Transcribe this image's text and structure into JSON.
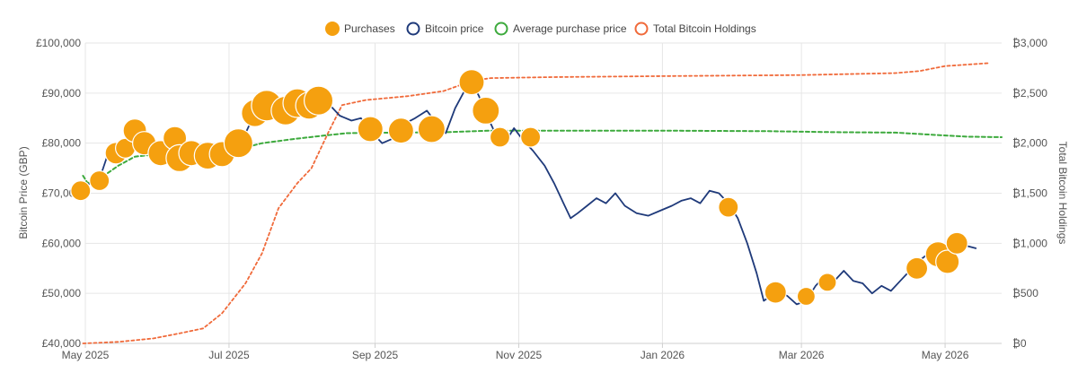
{
  "chart_data": {
    "type": "line",
    "title": "",
    "legend": {
      "placement": "top-center",
      "entries": [
        {
          "name": "Purchases",
          "marker": "filled-circle",
          "color": "#F5A00F"
        },
        {
          "name": "Bitcoin price",
          "marker": "hollow-circle",
          "color": "#1F3A7A"
        },
        {
          "name": "Average purchase price",
          "marker": "hollow-circle",
          "color": "#3DAA3D"
        },
        {
          "name": "Total Bitcoin Holdings",
          "marker": "hollow-circle",
          "color": "#F06A3A"
        }
      ]
    },
    "x_axis": {
      "start": "2025-05-01",
      "end": "2026-05-25",
      "ticks": [
        {
          "date": "2025-05-01",
          "label": "May 2025"
        },
        {
          "date": "2025-07-01",
          "label": "Jul 2025"
        },
        {
          "date": "2025-09-01",
          "label": "Sep 2025"
        },
        {
          "date": "2025-11-01",
          "label": "Nov 2025"
        },
        {
          "date": "2026-01-01",
          "label": "Jan 2026"
        },
        {
          "date": "2026-03-01",
          "label": "Mar 2026"
        },
        {
          "date": "2026-05-01",
          "label": "May 2026"
        }
      ]
    },
    "y_left": {
      "label": "Bitcoin Price (GBP)",
      "min": 40000,
      "max": 100000,
      "ticks": [
        {
          "value": 40000,
          "label": "£40,000"
        },
        {
          "value": 50000,
          "label": "£50,000"
        },
        {
          "value": 60000,
          "label": "£60,000"
        },
        {
          "value": 70000,
          "label": "£70,000"
        },
        {
          "value": 80000,
          "label": "£80,000"
        },
        {
          "value": 90000,
          "label": "£90,000"
        },
        {
          "value": 100000,
          "label": "£100,000"
        }
      ]
    },
    "y_right": {
      "label": "Total Bitcoin Holdings",
      "min": 0,
      "max": 3000,
      "ticks": [
        {
          "value": 0,
          "label": "₿0"
        },
        {
          "value": 500,
          "label": "₿500"
        },
        {
          "value": 1000,
          "label": "₿1,000"
        },
        {
          "value": 1500,
          "label": "₿1,500"
        },
        {
          "value": 2000,
          "label": "₿2,000"
        },
        {
          "value": 2500,
          "label": "₿2,500"
        },
        {
          "value": 3000,
          "label": "₿3,000"
        }
      ]
    },
    "grid": true,
    "series": [
      {
        "name": "Bitcoin price",
        "axis": "left",
        "color": "#1F3A7A",
        "style": "solid",
        "points": [
          [
            "2025-04-29",
            70500
          ],
          [
            "2025-05-03",
            72000
          ],
          [
            "2025-05-07",
            72800
          ],
          [
            "2025-05-10",
            77000
          ],
          [
            "2025-05-14",
            78500
          ],
          [
            "2025-05-18",
            80500
          ],
          [
            "2025-05-22",
            82000
          ],
          [
            "2025-05-26",
            80000
          ],
          [
            "2025-05-30",
            78000
          ],
          [
            "2025-06-04",
            79500
          ],
          [
            "2025-06-08",
            77500
          ],
          [
            "2025-06-13",
            80000
          ],
          [
            "2025-06-18",
            78500
          ],
          [
            "2025-06-23",
            76500
          ],
          [
            "2025-06-28",
            78000
          ],
          [
            "2025-07-03",
            79500
          ],
          [
            "2025-07-07",
            81000
          ],
          [
            "2025-07-11",
            85000
          ],
          [
            "2025-07-15",
            86500
          ],
          [
            "2025-07-19",
            87500
          ],
          [
            "2025-07-23",
            86000
          ],
          [
            "2025-07-28",
            87500
          ],
          [
            "2025-08-02",
            86000
          ],
          [
            "2025-08-07",
            85500
          ],
          [
            "2025-08-12",
            88000
          ],
          [
            "2025-08-17",
            85500
          ],
          [
            "2025-08-22",
            84500
          ],
          [
            "2025-08-26",
            85000
          ],
          [
            "2025-08-31",
            82000
          ],
          [
            "2025-09-04",
            80000
          ],
          [
            "2025-09-09",
            81000
          ],
          [
            "2025-09-14",
            84000
          ],
          [
            "2025-09-18",
            85000
          ],
          [
            "2025-09-23",
            86500
          ],
          [
            "2025-09-27",
            84000
          ],
          [
            "2025-10-01",
            82000
          ],
          [
            "2025-10-05",
            87000
          ],
          [
            "2025-10-09",
            90500
          ],
          [
            "2025-10-12",
            92000
          ],
          [
            "2025-10-15",
            89500
          ],
          [
            "2025-10-18",
            86000
          ],
          [
            "2025-10-22",
            82000
          ],
          [
            "2025-10-26",
            80000
          ],
          [
            "2025-10-30",
            83000
          ],
          [
            "2025-11-03",
            80500
          ],
          [
            "2025-11-07",
            78500
          ],
          [
            "2025-11-12",
            75500
          ],
          [
            "2025-11-16",
            72000
          ],
          [
            "2025-11-20",
            68000
          ],
          [
            "2025-11-23",
            65000
          ],
          [
            "2025-11-26",
            66000
          ],
          [
            "2025-11-30",
            67500
          ],
          [
            "2025-12-04",
            69000
          ],
          [
            "2025-12-08",
            68000
          ],
          [
            "2025-12-12",
            70000
          ],
          [
            "2025-12-16",
            67500
          ],
          [
            "2025-12-21",
            66000
          ],
          [
            "2025-12-26",
            65500
          ],
          [
            "2025-12-31",
            66500
          ],
          [
            "2026-01-05",
            67500
          ],
          [
            "2026-01-09",
            68500
          ],
          [
            "2026-01-13",
            69000
          ],
          [
            "2026-01-17",
            68000
          ],
          [
            "2026-01-21",
            70500
          ],
          [
            "2026-01-25",
            70000
          ],
          [
            "2026-01-29",
            68000
          ],
          [
            "2026-02-02",
            65000
          ],
          [
            "2026-02-06",
            60000
          ],
          [
            "2026-02-10",
            54000
          ],
          [
            "2026-02-13",
            48500
          ],
          [
            "2026-02-16",
            49500
          ],
          [
            "2026-02-19",
            50500
          ],
          [
            "2026-02-23",
            49500
          ],
          [
            "2026-02-27",
            47800
          ],
          [
            "2026-03-03",
            48500
          ],
          [
            "2026-03-07",
            51500
          ],
          [
            "2026-03-11",
            53500
          ],
          [
            "2026-03-15",
            52500
          ],
          [
            "2026-03-19",
            54500
          ],
          [
            "2026-03-23",
            52500
          ],
          [
            "2026-03-27",
            52000
          ],
          [
            "2026-03-31",
            50000
          ],
          [
            "2026-04-04",
            51500
          ],
          [
            "2026-04-08",
            50500
          ],
          [
            "2026-04-12",
            52500
          ],
          [
            "2026-04-16",
            54500
          ],
          [
            "2026-04-20",
            56500
          ],
          [
            "2026-04-24",
            58000
          ],
          [
            "2026-04-28",
            56000
          ],
          [
            "2026-05-02",
            58000
          ],
          [
            "2026-05-06",
            60000
          ],
          [
            "2026-05-10",
            59500
          ],
          [
            "2026-05-14",
            59000
          ]
        ]
      },
      {
        "name": "Average purchase price",
        "axis": "left",
        "color": "#3DAA3D",
        "style": "dashed",
        "points": [
          [
            "2025-04-30",
            73500
          ],
          [
            "2025-05-02",
            72000
          ],
          [
            "2025-05-08",
            73200
          ],
          [
            "2025-05-15",
            75500
          ],
          [
            "2025-05-22",
            77300
          ],
          [
            "2025-06-05",
            78000
          ],
          [
            "2025-06-20",
            78600
          ],
          [
            "2025-07-05",
            78800
          ],
          [
            "2025-07-15",
            80000
          ],
          [
            "2025-07-28",
            80800
          ],
          [
            "2025-08-10",
            81500
          ],
          [
            "2025-08-20",
            82000
          ],
          [
            "2025-09-10",
            82100
          ],
          [
            "2025-10-01",
            82200
          ],
          [
            "2025-10-20",
            82500
          ],
          [
            "2025-11-15",
            82500
          ],
          [
            "2026-01-01",
            82500
          ],
          [
            "2026-02-15",
            82400
          ],
          [
            "2026-03-15",
            82200
          ],
          [
            "2026-04-10",
            82100
          ],
          [
            "2026-04-25",
            81700
          ],
          [
            "2026-05-10",
            81300
          ],
          [
            "2026-05-25",
            81200
          ]
        ]
      },
      {
        "name": "Total Bitcoin Holdings",
        "axis": "right",
        "color": "#F06A3A",
        "style": "dotted",
        "points": [
          [
            "2025-04-30",
            0
          ],
          [
            "2025-05-15",
            15
          ],
          [
            "2025-05-30",
            50
          ],
          [
            "2025-06-10",
            100
          ],
          [
            "2025-06-20",
            150
          ],
          [
            "2025-06-28",
            300
          ],
          [
            "2025-07-08",
            600
          ],
          [
            "2025-07-15",
            900
          ],
          [
            "2025-07-22",
            1350
          ],
          [
            "2025-07-30",
            1600
          ],
          [
            "2025-08-05",
            1750
          ],
          [
            "2025-08-12",
            2100
          ],
          [
            "2025-08-18",
            2380
          ],
          [
            "2025-08-28",
            2430
          ],
          [
            "2025-09-15",
            2470
          ],
          [
            "2025-09-30",
            2520
          ],
          [
            "2025-10-12",
            2620
          ],
          [
            "2025-10-20",
            2650
          ],
          [
            "2025-11-15",
            2660
          ],
          [
            "2026-01-01",
            2670
          ],
          [
            "2026-03-01",
            2680
          ],
          [
            "2026-04-10",
            2700
          ],
          [
            "2026-04-20",
            2720
          ],
          [
            "2026-05-01",
            2770
          ],
          [
            "2026-05-20",
            2800
          ]
        ]
      }
    ],
    "purchases": [
      {
        "date": "2025-04-29",
        "price": 70500,
        "size": 11
      },
      {
        "date": "2025-05-07",
        "price": 72500,
        "size": 11
      },
      {
        "date": "2025-05-14",
        "price": 78000,
        "size": 12
      },
      {
        "date": "2025-05-18",
        "price": 79000,
        "size": 11
      },
      {
        "date": "2025-05-22",
        "price": 82500,
        "size": 13
      },
      {
        "date": "2025-05-26",
        "price": 80000,
        "size": 13
      },
      {
        "date": "2025-06-02",
        "price": 78000,
        "size": 14
      },
      {
        "date": "2025-06-08",
        "price": 81000,
        "size": 13
      },
      {
        "date": "2025-06-10",
        "price": 77000,
        "size": 15
      },
      {
        "date": "2025-06-15",
        "price": 78000,
        "size": 14
      },
      {
        "date": "2025-06-22",
        "price": 77500,
        "size": 15
      },
      {
        "date": "2025-06-28",
        "price": 77800,
        "size": 14
      },
      {
        "date": "2025-07-05",
        "price": 80000,
        "size": 16
      },
      {
        "date": "2025-07-12",
        "price": 86000,
        "size": 15
      },
      {
        "date": "2025-07-17",
        "price": 87500,
        "size": 17
      },
      {
        "date": "2025-07-25",
        "price": 86500,
        "size": 16
      },
      {
        "date": "2025-07-30",
        "price": 88000,
        "size": 16
      },
      {
        "date": "2025-08-04",
        "price": 87500,
        "size": 15
      },
      {
        "date": "2025-08-08",
        "price": 88500,
        "size": 16
      },
      {
        "date": "2025-08-30",
        "price": 82800,
        "size": 14
      },
      {
        "date": "2025-09-12",
        "price": 82500,
        "size": 14
      },
      {
        "date": "2025-09-25",
        "price": 82800,
        "size": 15
      },
      {
        "date": "2025-10-12",
        "price": 92200,
        "size": 14
      },
      {
        "date": "2025-10-18",
        "price": 86500,
        "size": 15
      },
      {
        "date": "2025-10-24",
        "price": 81200,
        "size": 11
      },
      {
        "date": "2025-11-06",
        "price": 81200,
        "size": 11
      },
      {
        "date": "2026-01-29",
        "price": 67200,
        "size": 11
      },
      {
        "date": "2026-02-18",
        "price": 50200,
        "size": 12
      },
      {
        "date": "2026-03-03",
        "price": 49400,
        "size": 10
      },
      {
        "date": "2026-03-12",
        "price": 52200,
        "size": 10
      },
      {
        "date": "2026-04-19",
        "price": 55000,
        "size": 12
      },
      {
        "date": "2026-04-28",
        "price": 57800,
        "size": 14
      },
      {
        "date": "2026-05-02",
        "price": 56300,
        "size": 13
      },
      {
        "date": "2026-05-06",
        "price": 60000,
        "size": 12
      }
    ]
  }
}
